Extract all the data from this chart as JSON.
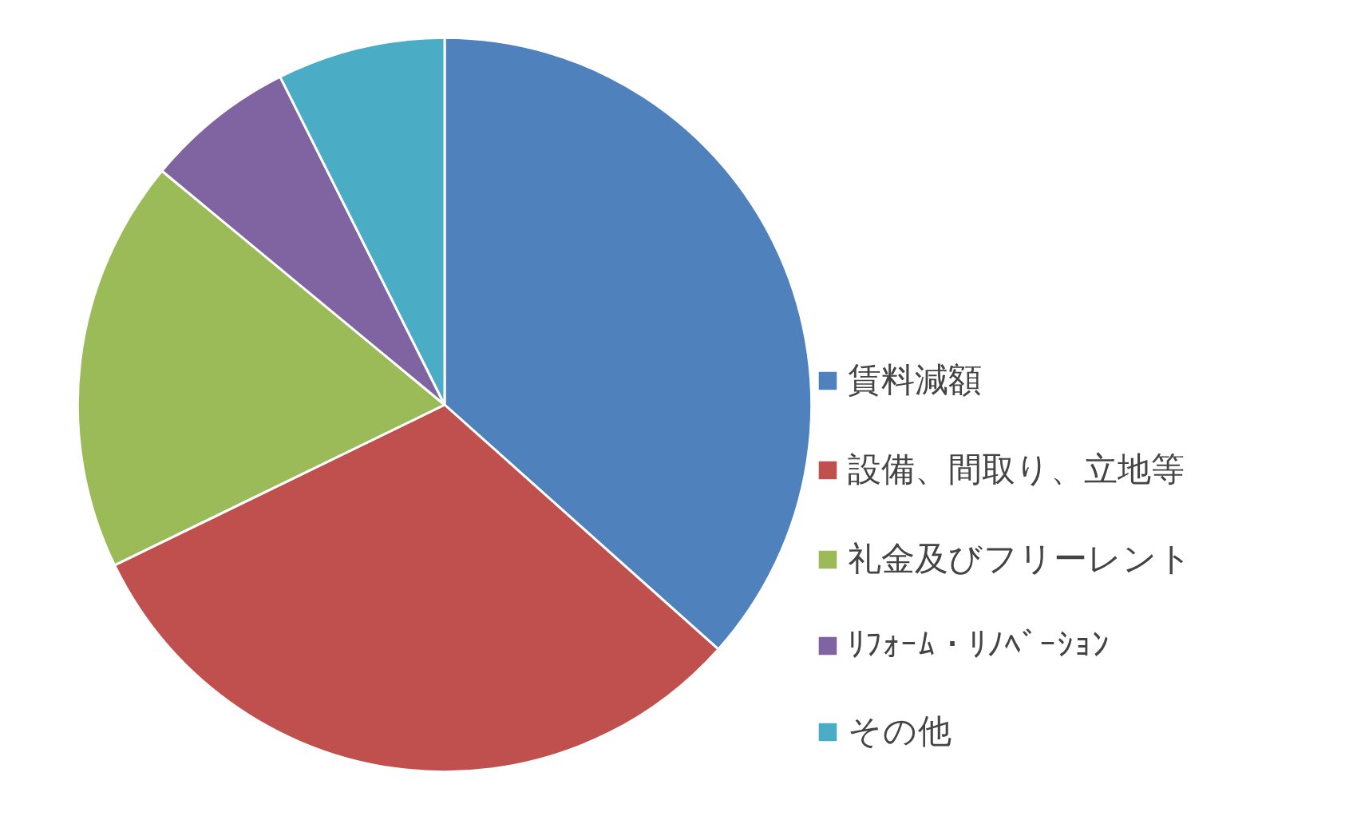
{
  "chart_data": {
    "type": "pie",
    "categories": [
      "賃料減額",
      "設備、間取り、立地等",
      "礼金及びフリーレント",
      "ﾘﾌｫｰﾑ・ﾘﾉﾍﾞｰｼｮﾝ",
      "その他"
    ],
    "values": [
      36.6,
      31.2,
      18.2,
      6.6,
      7.4
    ],
    "colors": [
      "#4f81bd",
      "#c0504d",
      "#9bbb59",
      "#8064a2",
      "#4bacc6"
    ],
    "legend": "right"
  }
}
